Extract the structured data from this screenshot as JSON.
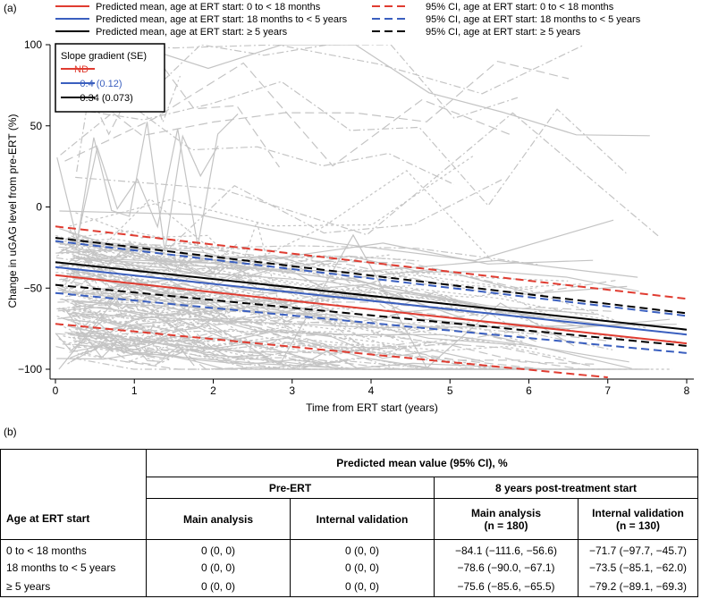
{
  "panel_a_label": "(a)",
  "panel_b_label": "(b)",
  "chart_data": {
    "type": "line",
    "title": "",
    "xlabel": "Time from ERT start (years)",
    "ylabel": "Change in uGAG level from pre-ERT (%)",
    "xlim": [
      0,
      8
    ],
    "ylim": [
      -105,
      100
    ],
    "xticks": [
      0,
      1,
      2,
      3,
      4,
      5,
      6,
      7,
      8
    ],
    "yticks": [
      -100,
      -50,
      0,
      50,
      100
    ],
    "legend": [
      {
        "label": "Predicted mean, age at ERT start: 0 to < 18 months",
        "color": "#e03c31",
        "dash": "solid"
      },
      {
        "label": "Predicted mean, age at ERT start: 18 months to < 5 years",
        "color": "#3a5fbf",
        "dash": "solid"
      },
      {
        "label": "Predicted mean, age at ERT start: ≥ 5 years",
        "color": "#000000",
        "dash": "solid"
      },
      {
        "label": "95% CI, age at ERT start: 0 to < 18 months",
        "color": "#e03c31",
        "dash": "dashed"
      },
      {
        "label": "95% CI, age at ERT start: 18 months to < 5 years",
        "color": "#3a5fbf",
        "dash": "dashed"
      },
      {
        "label": "95% CI, age at ERT start: ≥ 5 years",
        "color": "#000000",
        "dash": "dashed"
      }
    ],
    "slope_box": {
      "title": "Slope gradient (SE)",
      "items": [
        {
          "label": "ND",
          "color": "#e03c31"
        },
        {
          "label": "−0.4 (0.12)",
          "color": "#3a5fbf"
        },
        {
          "label": "−0.34 (0.073)",
          "color": "#000000"
        }
      ]
    },
    "series": [
      {
        "name": "Predicted mean, 0 to < 18 months",
        "color": "#e03c31",
        "dash": "solid",
        "x": [
          0,
          8
        ],
        "y": [
          -42,
          -84.1
        ]
      },
      {
        "name": "Predicted mean, 18 months to < 5 years",
        "color": "#3a5fbf",
        "dash": "solid",
        "x": [
          0,
          8
        ],
        "y": [
          -37,
          -78.6
        ]
      },
      {
        "name": "Predicted mean, ≥ 5 years",
        "color": "#000000",
        "dash": "solid",
        "x": [
          0,
          8
        ],
        "y": [
          -34,
          -75.6
        ]
      },
      {
        "name": "95% CI upper, 0 to < 18 months",
        "color": "#e03c31",
        "dash": "dashed",
        "x": [
          0,
          8
        ],
        "y": [
          -12,
          -56.6
        ]
      },
      {
        "name": "95% CI lower, 0 to < 18 months",
        "color": "#e03c31",
        "dash": "dashed",
        "x": [
          0,
          7
        ],
        "y": [
          -72,
          -105
        ]
      },
      {
        "name": "95% CI upper, 18 months to < 5 years",
        "color": "#3a5fbf",
        "dash": "dashed",
        "x": [
          0,
          8
        ],
        "y": [
          -21,
          -67.1
        ]
      },
      {
        "name": "95% CI lower, 18 months to < 5 years",
        "color": "#3a5fbf",
        "dash": "dashed",
        "x": [
          0,
          8
        ],
        "y": [
          -53,
          -90.0
        ]
      },
      {
        "name": "95% CI upper, ≥ 5 years",
        "color": "#000000",
        "dash": "dashed",
        "x": [
          0,
          8
        ],
        "y": [
          -19,
          -65.5
        ]
      },
      {
        "name": "95% CI lower, ≥ 5 years",
        "color": "#000000",
        "dash": "dashed",
        "x": [
          0,
          8
        ],
        "y": [
          -48,
          -85.6
        ]
      }
    ],
    "individual_trajectories": "many grey patient trajectories, mostly between -100 and 0, some up to 100"
  },
  "table": {
    "header_main": "Predicted mean value (95% CI), %",
    "header_pre": "Pre-ERT",
    "header_post": "8 years post-treatment start",
    "col_age": "Age at ERT start",
    "col_main_pre": "Main analysis",
    "col_int_pre": "Internal validation",
    "col_main_post": "Main analysis",
    "col_main_post_n": "(n = 180)",
    "col_int_post": "Internal validation",
    "col_int_post_n": "(n = 130)",
    "rows": [
      {
        "age": "0 to < 18 months",
        "pre_main": "0 (0, 0)",
        "pre_int": "0 (0, 0)",
        "post_main": "−84.1 (−111.6, −56.6)",
        "post_int": "−71.7 (−97.7, −45.7)"
      },
      {
        "age": "18 months to < 5 years",
        "pre_main": "0 (0, 0)",
        "pre_int": "0 (0, 0)",
        "post_main": "−78.6 (−90.0, −67.1)",
        "post_int": "−73.5 (−85.1, −62.0)"
      },
      {
        "age": "≥ 5 years",
        "pre_main": "0 (0, 0)",
        "pre_int": "0 (0, 0)",
        "post_main": "−75.6 (−85.6, −65.5)",
        "post_int": "−79.2 (−89.1, −69.3)"
      }
    ]
  }
}
